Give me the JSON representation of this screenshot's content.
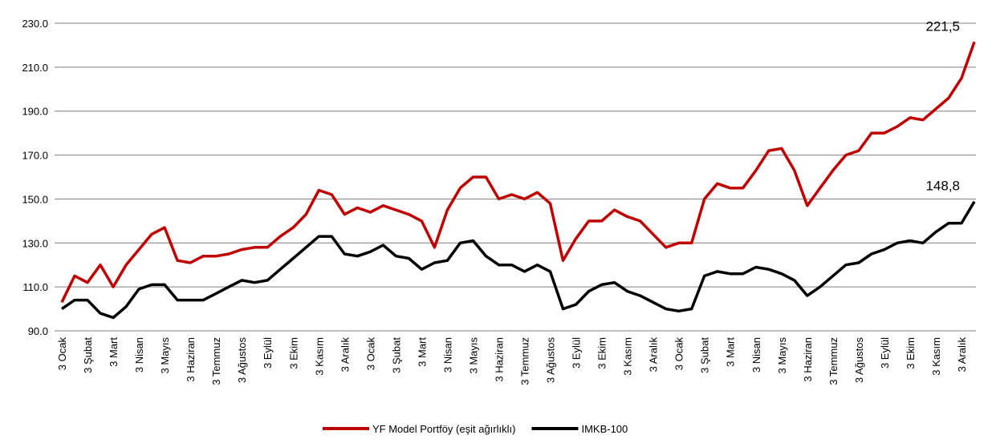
{
  "chart_data": {
    "type": "line",
    "categories": [
      "3 Ocak",
      null,
      "3 Şubat",
      null,
      "3 Mart",
      null,
      "3 Nisan",
      null,
      "3 Mayıs",
      null,
      "3 Haziran",
      null,
      "3 Temmuz",
      null,
      "3 Ağustos",
      null,
      "3 Eylül",
      null,
      "3 Ekim",
      null,
      "3 Kasım",
      null,
      "3 Aralık",
      null,
      "3 Ocak",
      null,
      "3 Şubat",
      null,
      "3 Mart",
      null,
      "3 Nisan",
      null,
      "3 Mayıs",
      null,
      "3 Haziran",
      null,
      "3 Temmuz",
      null,
      "3 Ağustos",
      null,
      "3 Eylül",
      null,
      "3 Ekim",
      null,
      "3 Kasım",
      null,
      "3 Aralık",
      null,
      "3 Ocak",
      null,
      "3 Şubat",
      null,
      "3 Mart",
      null,
      "3 Nisan",
      null,
      "3 Mayıs",
      null,
      "3 Haziran",
      null,
      "3 Temmuz",
      null,
      "3 Ağustos",
      null,
      "3 Eylül",
      null,
      "3 Ekim",
      null,
      "3 Kasım",
      null,
      "3 Aralık",
      null
    ],
    "series": [
      {
        "name": "YF Model Portföy (eşit ağırlıklı)",
        "color": "#c00000",
        "values": [
          103,
          115,
          112,
          120,
          110,
          120,
          127,
          134,
          137,
          122,
          121,
          124,
          124,
          125,
          127,
          128,
          128,
          133,
          137,
          143,
          154,
          152,
          143,
          146,
          144,
          147,
          145,
          143,
          140,
          128,
          145,
          155,
          160,
          160,
          150,
          152,
          150,
          153,
          148,
          122,
          132,
          140,
          140,
          145,
          142,
          140,
          134,
          128,
          130,
          130,
          150,
          157,
          155,
          155,
          163,
          172,
          173,
          163,
          147,
          155,
          163,
          170,
          172,
          180,
          180,
          183,
          187,
          186,
          191,
          196,
          205,
          221.5
        ]
      },
      {
        "name": "IMKB-100",
        "color": "#000000",
        "values": [
          100,
          104,
          104,
          98,
          96,
          101,
          109,
          111,
          111,
          104,
          104,
          104,
          107,
          110,
          113,
          112,
          113,
          118,
          123,
          128,
          133,
          133,
          125,
          124,
          126,
          129,
          124,
          123,
          118,
          121,
          122,
          130,
          131,
          124,
          120,
          120,
          117,
          120,
          117,
          100,
          102,
          108,
          111,
          112,
          108,
          106,
          103,
          100,
          99,
          100,
          115,
          117,
          116,
          116,
          119,
          118,
          116,
          113,
          106,
          110,
          115,
          120,
          121,
          125,
          127,
          130,
          131,
          130,
          135,
          139,
          139,
          148.8
        ]
      }
    ],
    "annotations": [
      {
        "label": "221,5",
        "value": 221.5
      },
      {
        "label": "148,8",
        "value": 148.8
      }
    ],
    "ylim": [
      90,
      230
    ],
    "yticks": [
      {
        "value": 90,
        "label": "90.0"
      },
      {
        "value": 110,
        "label": "110.0"
      },
      {
        "value": 130,
        "label": "130.0"
      },
      {
        "value": 150,
        "label": "150.0"
      },
      {
        "value": 170,
        "label": "170.0"
      },
      {
        "value": 190,
        "label": "190.0"
      },
      {
        "value": 210,
        "label": "210.0"
      },
      {
        "value": 230,
        "label": "230.0"
      }
    ],
    "grid": true,
    "legend": "bottom"
  }
}
